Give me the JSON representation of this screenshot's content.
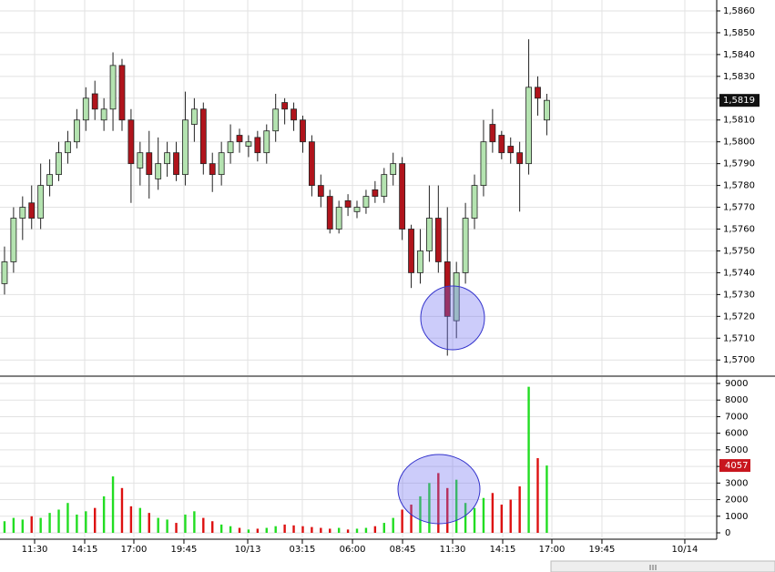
{
  "chart_data": [
    {
      "type": "candlestick",
      "series": [
        {
          "name": "open",
          "values": [
            1.5735,
            1.5745,
            1.5765,
            1.5772,
            1.5765,
            1.578,
            1.5785,
            1.5795,
            1.58,
            1.581,
            1.5822,
            1.581,
            1.5815,
            1.5835,
            1.581,
            1.5788,
            1.5795,
            1.5783,
            1.579,
            1.5795,
            1.5785,
            1.5808,
            1.5815,
            1.579,
            1.5785,
            1.5795,
            1.5803,
            1.5798,
            1.5802,
            1.5795,
            1.5805,
            1.5818,
            1.5815,
            1.581,
            1.58,
            1.578,
            1.5775,
            1.576,
            1.5773,
            1.5768,
            1.577,
            1.5778,
            1.5775,
            1.5785,
            1.579,
            1.576,
            1.574,
            1.575,
            1.5765,
            1.5745,
            1.5718,
            1.574,
            1.5765,
            1.578,
            1.5808,
            1.5803,
            1.5798,
            1.5795,
            1.579,
            1.5825,
            1.581
          ]
        },
        {
          "name": "high",
          "values": [
            1.5752,
            1.577,
            1.5775,
            1.578,
            1.579,
            1.5792,
            1.58,
            1.5805,
            1.5815,
            1.5825,
            1.5828,
            1.582,
            1.5841,
            1.5838,
            1.5815,
            1.58,
            1.5805,
            1.5802,
            1.58,
            1.58,
            1.5823,
            1.582,
            1.5818,
            1.5795,
            1.58,
            1.5808,
            1.5806,
            1.5803,
            1.5805,
            1.5808,
            1.5822,
            1.582,
            1.5818,
            1.5812,
            1.5803,
            1.5785,
            1.5778,
            1.5773,
            1.5776,
            1.5773,
            1.5778,
            1.5782,
            1.5788,
            1.5795,
            1.5793,
            1.5762,
            1.576,
            1.578,
            1.578,
            1.577,
            1.5745,
            1.5772,
            1.5785,
            1.581,
            1.5815,
            1.5805,
            1.5802,
            1.58,
            1.5847,
            1.583,
            1.5822
          ]
        },
        {
          "name": "low",
          "values": [
            1.573,
            1.574,
            1.5755,
            1.576,
            1.576,
            1.5775,
            1.5782,
            1.579,
            1.5797,
            1.5805,
            1.581,
            1.5805,
            1.5805,
            1.5805,
            1.5772,
            1.578,
            1.5774,
            1.5778,
            1.5784,
            1.5782,
            1.578,
            1.58,
            1.5785,
            1.5777,
            1.578,
            1.579,
            1.5795,
            1.5793,
            1.5791,
            1.579,
            1.58,
            1.5808,
            1.5805,
            1.5795,
            1.5775,
            1.577,
            1.5758,
            1.5758,
            1.5766,
            1.5765,
            1.5767,
            1.5772,
            1.5772,
            1.578,
            1.5755,
            1.5733,
            1.5735,
            1.5745,
            1.574,
            1.5702,
            1.571,
            1.5735,
            1.576,
            1.5775,
            1.5795,
            1.5792,
            1.579,
            1.5768,
            1.5785,
            1.5812,
            1.5803
          ]
        },
        {
          "name": "close",
          "values": [
            1.5745,
            1.5765,
            1.577,
            1.5765,
            1.578,
            1.5785,
            1.5795,
            1.58,
            1.581,
            1.582,
            1.5815,
            1.5815,
            1.5835,
            1.581,
            1.579,
            1.5795,
            1.5785,
            1.579,
            1.5795,
            1.5785,
            1.581,
            1.5815,
            1.579,
            1.5785,
            1.5795,
            1.58,
            1.58,
            1.58,
            1.5795,
            1.5805,
            1.5815,
            1.5815,
            1.581,
            1.58,
            1.578,
            1.5775,
            1.576,
            1.577,
            1.577,
            1.577,
            1.5775,
            1.5775,
            1.5785,
            1.579,
            1.576,
            1.574,
            1.575,
            1.5765,
            1.5745,
            1.572,
            1.574,
            1.5765,
            1.578,
            1.58,
            1.58,
            1.5795,
            1.5795,
            1.579,
            1.5825,
            1.582,
            1.5819
          ]
        }
      ],
      "up_color": "#b4e3b0",
      "down_color": "#b0141c",
      "ylim": [
        1.5693,
        1.5865
      ],
      "yticks": [
        {
          "value": 1.57,
          "label": "1,5700"
        },
        {
          "value": 1.571,
          "label": "1,5710"
        },
        {
          "value": 1.572,
          "label": "1,5720"
        },
        {
          "value": 1.573,
          "label": "1,5730"
        },
        {
          "value": 1.574,
          "label": "1,5740"
        },
        {
          "value": 1.575,
          "label": "1,5750"
        },
        {
          "value": 1.576,
          "label": "1,5760"
        },
        {
          "value": 1.577,
          "label": "1,5770"
        },
        {
          "value": 1.578,
          "label": "1,5780"
        },
        {
          "value": 1.579,
          "label": "1,5790"
        },
        {
          "value": 1.58,
          "label": "1,5800"
        },
        {
          "value": 1.581,
          "label": "1,5810"
        },
        {
          "value": 1.582,
          "label": "1,5820"
        },
        {
          "value": 1.583,
          "label": "1,5830"
        },
        {
          "value": 1.584,
          "label": "1,5840"
        },
        {
          "value": 1.585,
          "label": "1,5850"
        },
        {
          "value": 1.586,
          "label": "1,5860"
        }
      ],
      "current_price": {
        "value": 1.5819,
        "label": "1,5819"
      },
      "grid": true
    },
    {
      "type": "volume",
      "values": [
        700,
        900,
        800,
        1000,
        900,
        1200,
        1400,
        1800,
        1100,
        1300,
        1500,
        2200,
        3400,
        2700,
        1600,
        1500,
        1200,
        900,
        800,
        600,
        1100,
        1300,
        900,
        700,
        500,
        400,
        300,
        200,
        250,
        300,
        400,
        500,
        450,
        400,
        350,
        300,
        250,
        300,
        200,
        250,
        300,
        400,
        600,
        900,
        1400,
        1700,
        2200,
        3000,
        3600,
        2700,
        3200,
        1800,
        1500,
        2100,
        2400,
        1700,
        2000,
        2800,
        8800,
        4500,
        4057
      ],
      "up_color": "#22dd22",
      "down_color": "#dd1111",
      "ylim": [
        -274,
        9384
      ],
      "yticks": [
        0,
        1000,
        2000,
        3000,
        4000,
        5000,
        6000,
        7000,
        8000,
        9000
      ],
      "xlim": [
        0,
        79.3
      ],
      "xticks": [
        {
          "value": 3.83,
          "label": "11:30"
        },
        {
          "value": 9.37,
          "label": "14:15"
        },
        {
          "value": 14.81,
          "label": "17:00"
        },
        {
          "value": 20.35,
          "label": "19:45"
        },
        {
          "value": 27.41,
          "label": "10/13"
        },
        {
          "value": 33.45,
          "label": "03:15"
        },
        {
          "value": 39.0,
          "label": "06:00"
        },
        {
          "value": 44.54,
          "label": "08:45"
        },
        {
          "value": 50.08,
          "label": "11:30"
        },
        {
          "value": 55.62,
          "label": "14:15"
        },
        {
          "value": 61.06,
          "label": "17:00"
        },
        {
          "value": 66.6,
          "label": "19:45"
        },
        {
          "value": 75.77,
          "label": "10/14"
        }
      ],
      "grid": true
    }
  ]
}
